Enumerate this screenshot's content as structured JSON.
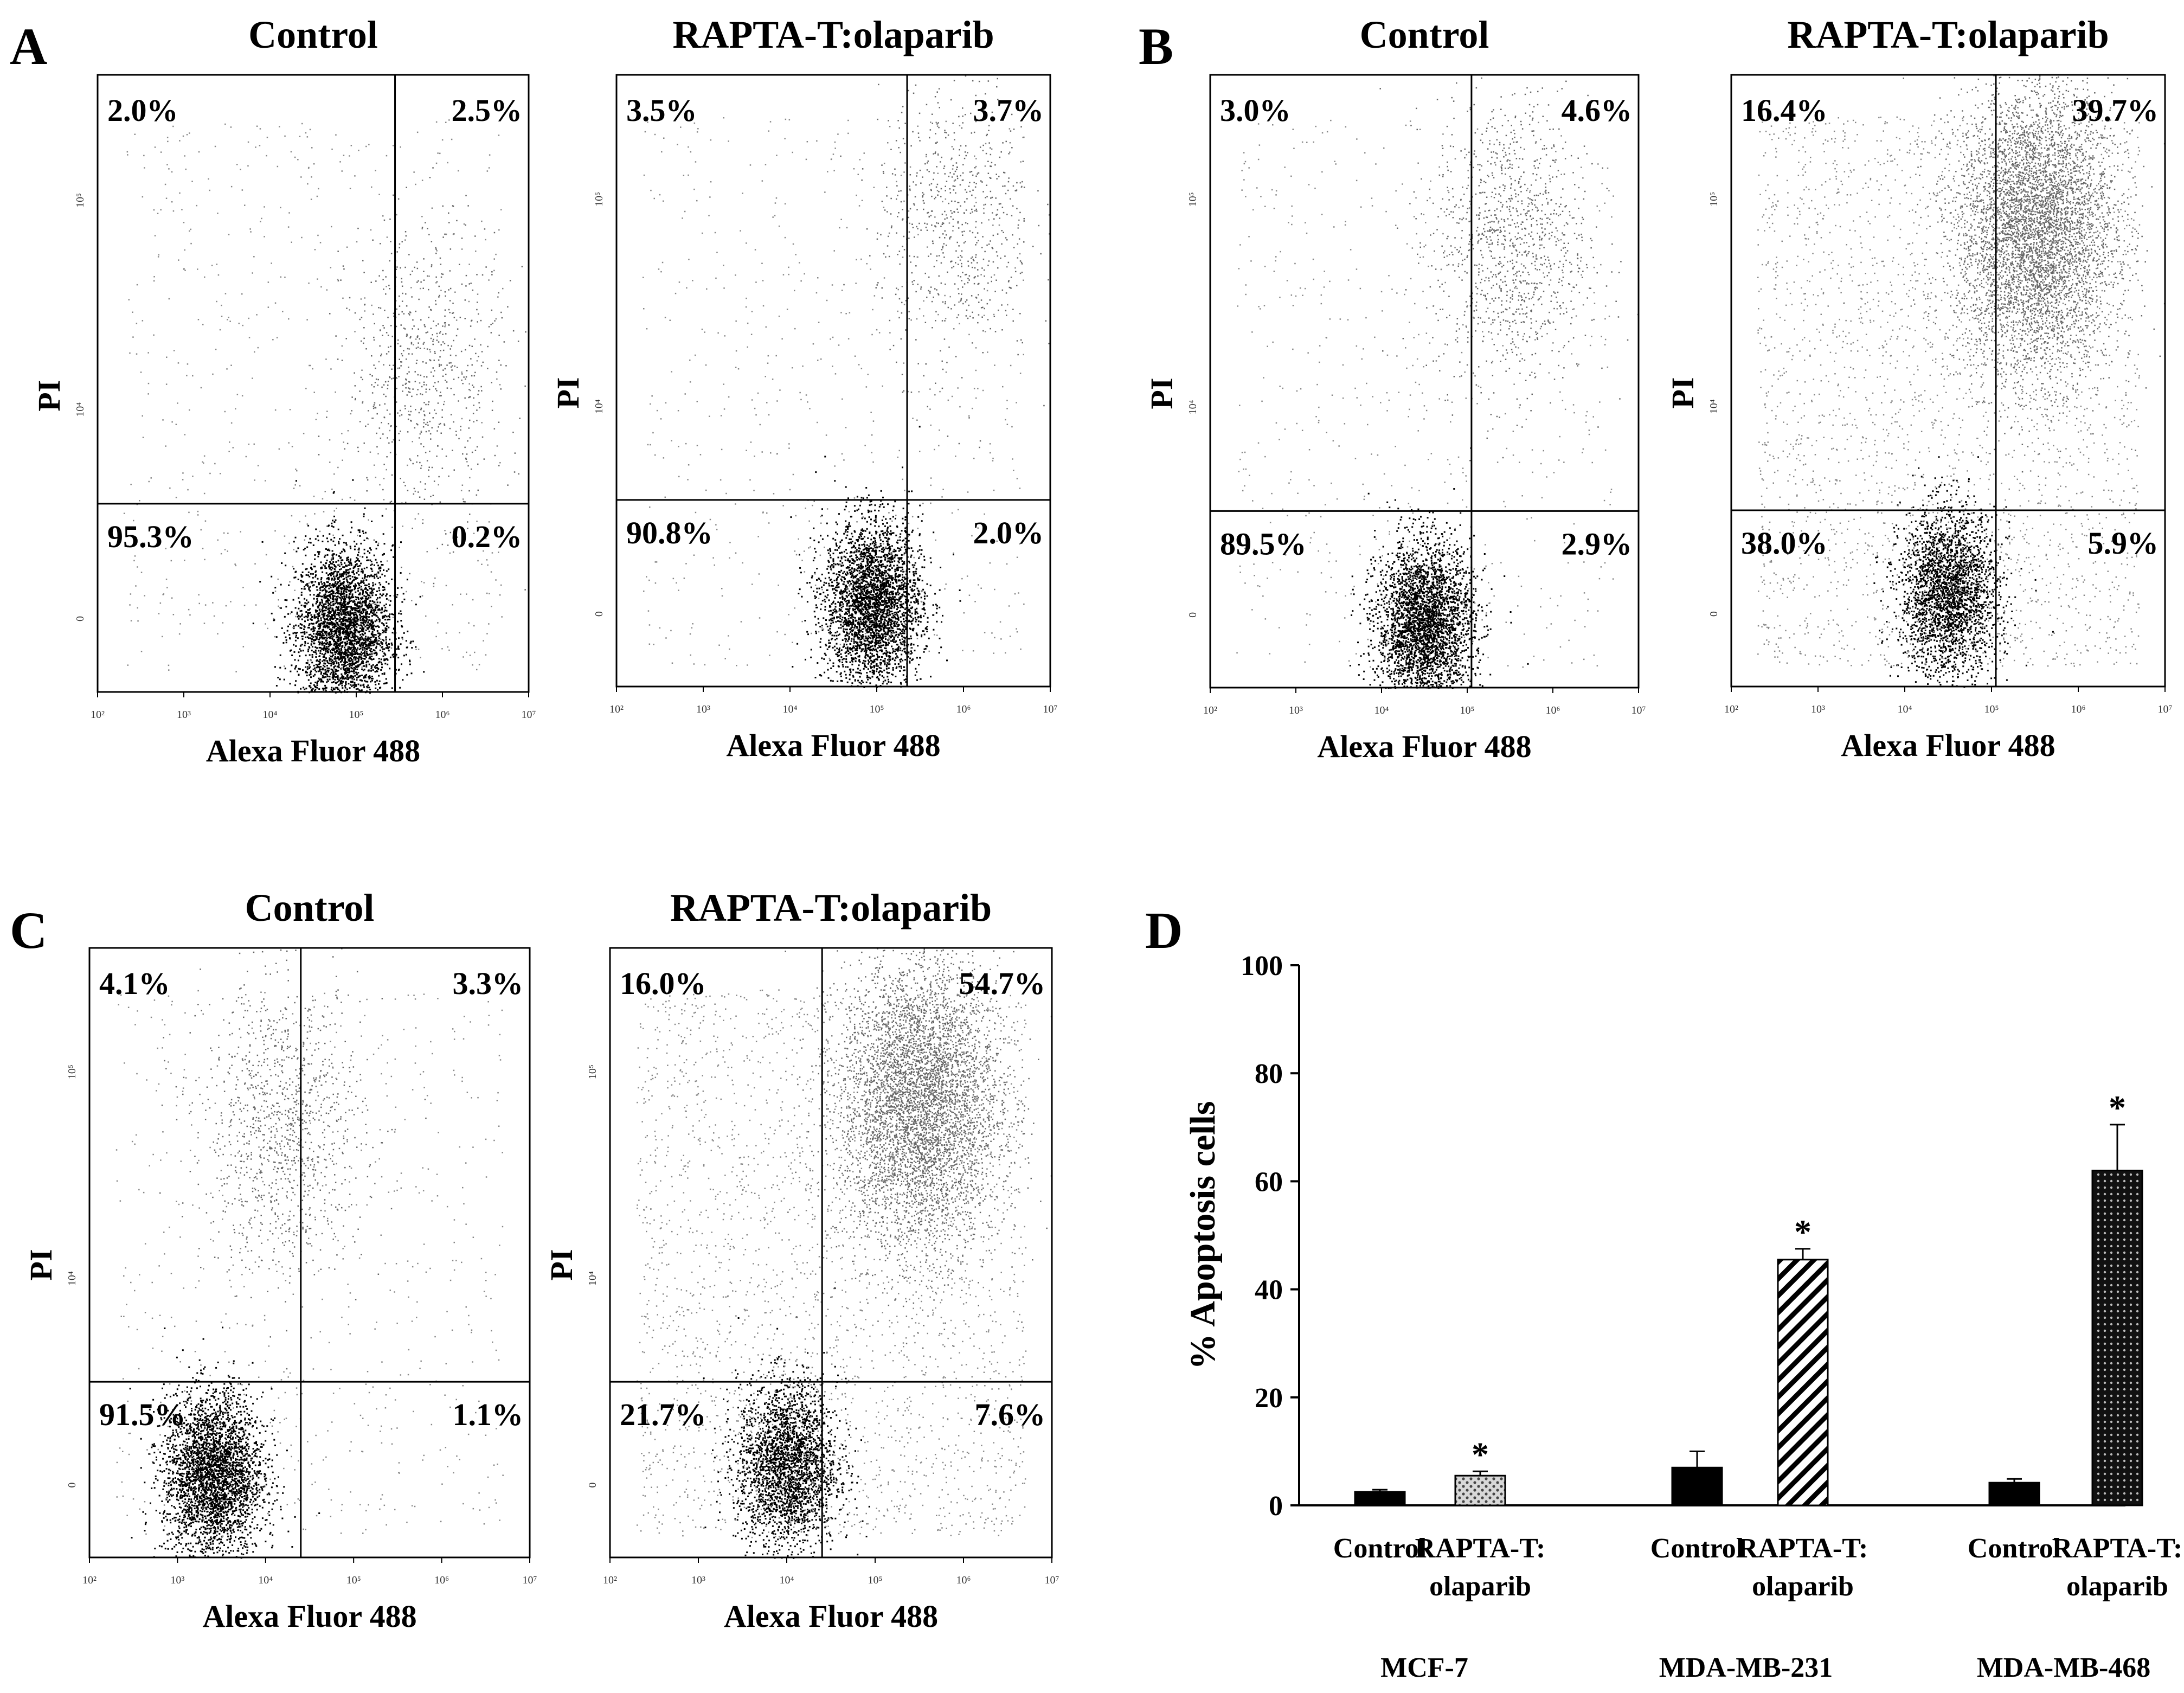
{
  "panels": [
    {
      "letter": "A",
      "plots": [
        {
          "id": "A1",
          "title": "Control",
          "ul": "2.0%",
          "ur": "2.5%",
          "ll": "95.3%",
          "lr": "0.2%",
          "dense": [
            4.85,
            -0.05
          ],
          "upper": [
            5.8,
            1.2
          ],
          "xgate": 5.45,
          "ygate": 0.55,
          "density": "low"
        },
        {
          "id": "A2",
          "title": "RAPTA-T:olaparib",
          "ul": "3.5%",
          "ur": "3.7%",
          "ll": "90.8%",
          "lr": "2.0%",
          "dense": [
            4.95,
            0.05
          ],
          "upper": [
            5.9,
            1.9
          ],
          "xgate": 5.35,
          "ygate": 0.55,
          "density": "low"
        }
      ]
    },
    {
      "letter": "B",
      "plots": [
        {
          "id": "B1",
          "title": "Control",
          "ul": "3.0%",
          "ur": "4.6%",
          "ll": "89.5%",
          "lr": "2.9%",
          "dense": [
            4.5,
            -0.05
          ],
          "upper": [
            5.5,
            1.8
          ],
          "xgate": 5.05,
          "ygate": 0.5,
          "density": "mid"
        },
        {
          "id": "B2",
          "title": "RAPTA-T:olaparib",
          "ul": "16.4%",
          "ur": "39.7%",
          "ll": "38.0%",
          "lr": "5.9%",
          "dense": [
            4.5,
            0.1
          ],
          "upper": [
            5.5,
            1.85
          ],
          "xgate": 5.05,
          "ygate": 0.5,
          "density": "high"
        }
      ]
    },
    {
      "letter": "C",
      "plots": [
        {
          "id": "C1",
          "title": "Control",
          "ul": "4.1%",
          "ur": "3.3%",
          "ll": "91.5%",
          "lr": "1.1%",
          "dense": [
            3.4,
            0.05
          ],
          "upper": [
            4.2,
            1.75
          ],
          "xgate": 4.4,
          "ygate": 0.5,
          "density": "mid"
        },
        {
          "id": "C2",
          "title": "RAPTA-T:olaparib",
          "ul": "16.0%",
          "ur": "54.7%",
          "ll": "21.7%",
          "lr": "7.6%",
          "dense": [
            4.0,
            0.1
          ],
          "upper": [
            5.5,
            1.85
          ],
          "xgate": 4.4,
          "ygate": 0.5,
          "density": "high"
        }
      ]
    }
  ],
  "flow_axis": {
    "xlabel": "Alexa Fluor 488",
    "ylabel": "PI",
    "xticks": [
      "10²",
      "10³",
      "10⁴",
      "10⁵",
      "10⁶",
      "10⁷"
    ],
    "yticks": [
      "0",
      "10⁴",
      "10⁵"
    ]
  },
  "panel_d_letter": "D",
  "chart_data": {
    "type": "bar",
    "title": "",
    "ylabel": "% Apoptosis cells",
    "ylim": [
      0,
      100
    ],
    "yticks": [
      0,
      20,
      40,
      60,
      80,
      100
    ],
    "groups": [
      "MCF-7",
      "MDA-MB-231",
      "MDA-MB-468"
    ],
    "bars": [
      {
        "group": "MCF-7",
        "label": [
          "Control",
          ""
        ],
        "value": 2.5,
        "error": 0.4,
        "pattern": "solid",
        "star": false
      },
      {
        "group": "MCF-7",
        "label": [
          "RAPTA-T:",
          "olaparib"
        ],
        "value": 5.5,
        "error": 0.8,
        "pattern": "dots",
        "star": true
      },
      {
        "group": "MDA-MB-231",
        "label": [
          "Control",
          ""
        ],
        "value": 7.0,
        "error": 3.0,
        "pattern": "solid",
        "star": false
      },
      {
        "group": "MDA-MB-231",
        "label": [
          "RAPTA-T:",
          "olaparib"
        ],
        "value": 45.5,
        "error": 2.0,
        "pattern": "diagonal",
        "star": true
      },
      {
        "group": "MDA-MB-468",
        "label": [
          "Control",
          ""
        ],
        "value": 4.2,
        "error": 0.7,
        "pattern": "solid",
        "star": false
      },
      {
        "group": "MDA-MB-468",
        "label": [
          "RAPTA-T:",
          "olaparib"
        ],
        "value": 62.0,
        "error": 8.5,
        "pattern": "crosshatch",
        "star": true
      }
    ],
    "star_symbol": "*"
  }
}
